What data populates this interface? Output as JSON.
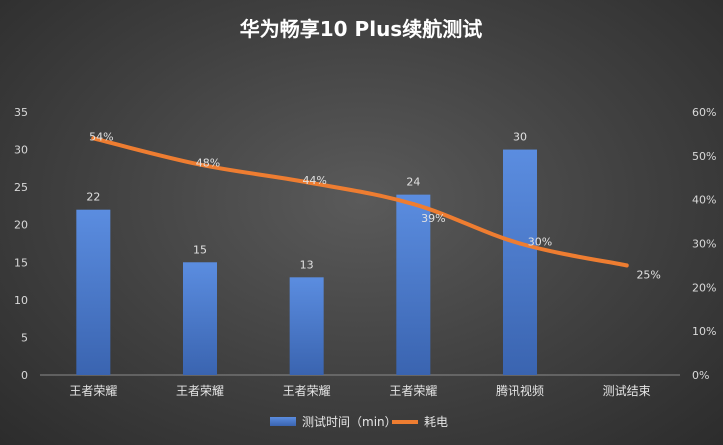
{
  "chart_data": {
    "type": "bar",
    "title": "华为畅享10 Plus续航测试",
    "categories": [
      "王者荣耀",
      "王者荣耀",
      "王者荣耀",
      "王者荣耀",
      "腾讯视频",
      "测试结束"
    ],
    "series": [
      {
        "name": "测试时间（min）",
        "type": "bar",
        "axis": "left",
        "values": [
          22,
          15,
          13,
          24,
          30,
          null
        ],
        "labels": [
          "22",
          "15",
          "13",
          "24",
          "30",
          ""
        ]
      },
      {
        "name": "耗电",
        "type": "line",
        "axis": "right",
        "values": [
          54,
          48,
          44,
          39,
          30,
          25
        ],
        "labels": [
          "54%",
          "48%",
          "44%",
          "39%",
          "30%",
          "25%"
        ]
      }
    ],
    "y_left": {
      "ylim": [
        0,
        35
      ],
      "ticks": [
        "0",
        "5",
        "10",
        "15",
        "20",
        "25",
        "30",
        "35"
      ]
    },
    "y_right": {
      "ylim": [
        0,
        60
      ],
      "ticks": [
        "0%",
        "10%",
        "20%",
        "30%",
        "40%",
        "50%",
        "60%"
      ]
    },
    "grid": false,
    "legend_position": "bottom",
    "colors": {
      "bar": "#4a78c8",
      "bar_light": "#5b8de0",
      "line": "#ee7d31",
      "background": "#404040"
    }
  }
}
